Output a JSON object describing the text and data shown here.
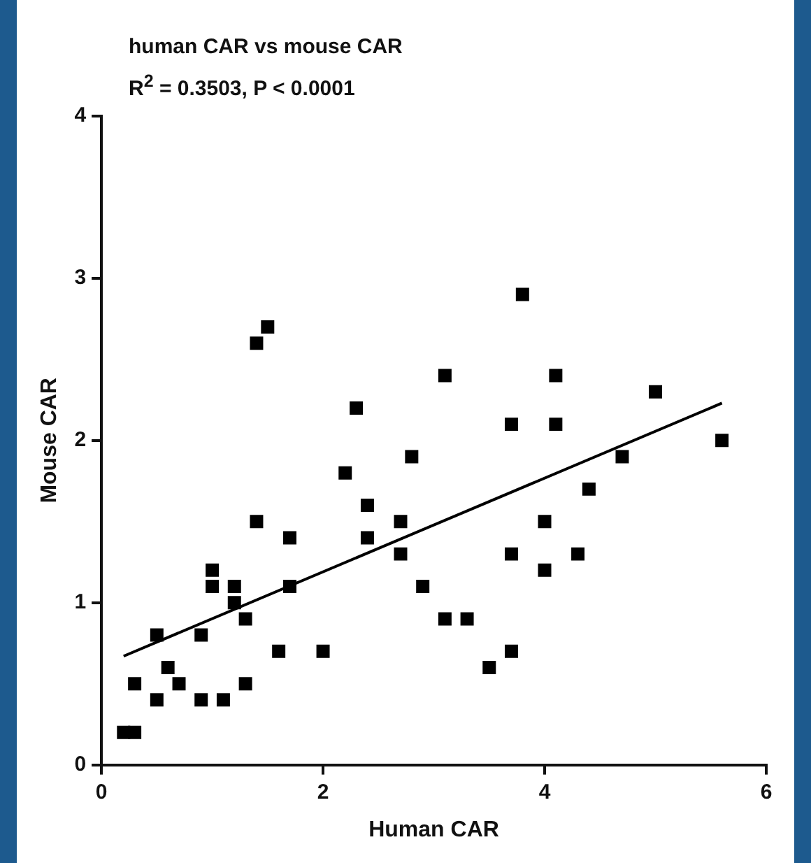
{
  "chart_data": {
    "type": "scatter",
    "title": "human CAR vs mouse CAR",
    "subtitle": "R$^{2}$ = 0.3503, P < 0.0001",
    "xlabel": "Human CAR",
    "ylabel": "Mouse CAR",
    "xlim": [
      0,
      6
    ],
    "xticks": [
      0,
      2,
      4,
      6
    ],
    "ylim": [
      0,
      4
    ],
    "yticks": [
      0,
      1,
      2,
      3,
      4
    ],
    "grid": false,
    "legend": false,
    "series": [
      {
        "type": "scatter",
        "color": "#000000",
        "marker": "square",
        "x": [
          0.2,
          0.3,
          0.3,
          0.5,
          0.5,
          0.6,
          0.7,
          0.9,
          0.9,
          1.1,
          1.0,
          1.0,
          1.2,
          1.2,
          1.3,
          1.3,
          1.4,
          1.4,
          1.5,
          1.6,
          1.7,
          1.7,
          2.0,
          2.2,
          2.3,
          2.4,
          2.4,
          2.7,
          2.7,
          2.8,
          2.9,
          3.1,
          3.1,
          3.3,
          3.5,
          3.7,
          3.7,
          3.7,
          3.8,
          4.0,
          4.0,
          4.1,
          4.1,
          4.3,
          4.4,
          4.7,
          5.0,
          5.6
        ],
        "values": [
          0.2,
          0.2,
          0.5,
          0.4,
          0.8,
          0.6,
          0.5,
          0.8,
          0.4,
          0.4,
          1.2,
          1.1,
          1.1,
          1.0,
          0.9,
          0.5,
          1.5,
          2.6,
          2.7,
          0.7,
          1.4,
          1.1,
          0.7,
          1.8,
          2.2,
          1.6,
          1.4,
          1.5,
          1.3,
          1.9,
          1.1,
          2.4,
          0.9,
          0.9,
          0.6,
          0.7,
          2.1,
          1.3,
          2.9,
          1.5,
          1.2,
          2.4,
          2.1,
          1.3,
          1.7,
          1.9,
          2.3,
          2.0
        ]
      },
      {
        "type": "line",
        "color": "#000000",
        "x": [
          0.2,
          5.6
        ],
        "values": [
          0.67,
          2.23
        ]
      }
    ]
  }
}
